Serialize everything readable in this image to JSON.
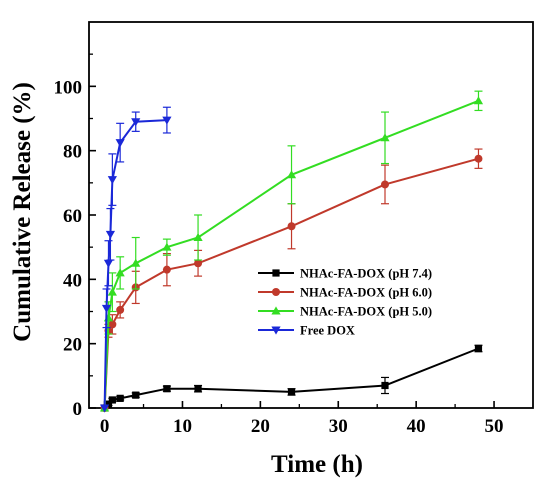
{
  "chart_data": {
    "type": "line",
    "xlabel": "Time (h)",
    "ylabel": "Cumulative Release (%)",
    "xlim": [
      -2,
      55
    ],
    "ylim": [
      0,
      120
    ],
    "xticks": [
      0,
      10,
      20,
      30,
      40,
      50
    ],
    "yticks": [
      0,
      20,
      40,
      60,
      80,
      100
    ],
    "grid": false,
    "legend_position": "center-right",
    "series": [
      {
        "name": "NHAc-FA-DOX (pH 7.4)",
        "color": "#000000",
        "marker": "square",
        "x": [
          0,
          0.5,
          1,
          2,
          4,
          8,
          12,
          24,
          36,
          48
        ],
        "y": [
          0,
          1.2,
          2.5,
          3,
          4,
          6,
          6,
          5,
          7,
          18.5
        ],
        "err": [
          0,
          0.4,
          0.5,
          0.5,
          0.7,
          0.8,
          1,
          1,
          2.5,
          1
        ]
      },
      {
        "name": "NHAc-FA-DOX (pH 6.0)",
        "color": "#c0392b",
        "marker": "circle",
        "x": [
          0,
          0.5,
          1,
          2,
          4,
          8,
          12,
          24,
          36,
          48
        ],
        "y": [
          0,
          24,
          26,
          30.5,
          37.5,
          43,
          45,
          56.5,
          69.5,
          77.5
        ],
        "err": [
          0,
          2,
          3,
          2.5,
          5,
          5,
          4,
          7,
          6,
          3
        ]
      },
      {
        "name": "NHAc-FA-DOX (pH 5.0)",
        "color": "#33dd22",
        "marker": "triangle-up",
        "x": [
          0,
          0.5,
          1,
          2,
          4,
          8,
          12,
          24,
          36,
          48
        ],
        "y": [
          0,
          28,
          36,
          42,
          45,
          50,
          53,
          72.5,
          84,
          95.5
        ],
        "err": [
          0,
          5,
          6,
          5,
          8,
          2.5,
          7,
          9,
          8,
          3
        ]
      },
      {
        "name": "Free DOX",
        "color": "#1a28d8",
        "marker": "triangle-down",
        "x": [
          0,
          0.25,
          0.5,
          0.75,
          1,
          2,
          4,
          8
        ],
        "y": [
          0,
          31,
          45,
          54,
          71,
          82.5,
          89,
          89.5
        ],
        "err": [
          0,
          6,
          7,
          8,
          8,
          6,
          3,
          4
        ]
      }
    ]
  }
}
